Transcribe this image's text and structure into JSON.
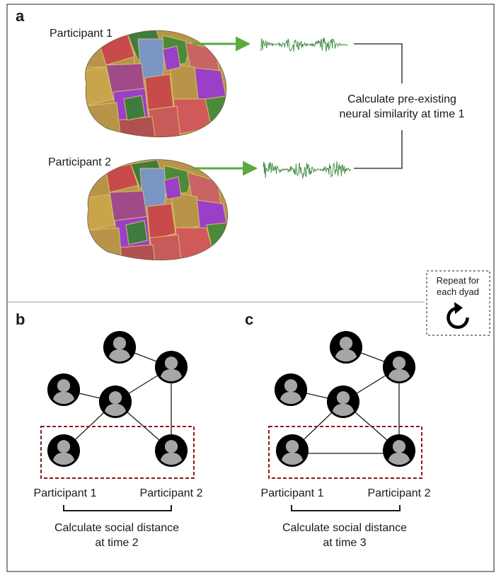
{
  "panel_a": {
    "letter": "a",
    "participant_1": "Participant 1",
    "participant_2": "Participant 2",
    "calc_line1": "Calculate pre-existing",
    "calc_line2": "neural similarity at time 1"
  },
  "repeat_box": {
    "line1": "Repeat for",
    "line2": "each dyad",
    "icon": "repeat-icon"
  },
  "panel_b": {
    "letter": "b",
    "participant_1": "Participant 1",
    "participant_2": "Participant 2",
    "calc_line1": "Calculate social distance",
    "calc_line2": "at time 2"
  },
  "panel_c": {
    "letter": "c",
    "participant_1": "Participant 1",
    "participant_2": "Participant 2",
    "calc_line1": "Calculate social distance",
    "calc_line2": "at time 3"
  },
  "colors": {
    "signal_green": "#3d8a3d",
    "arrow_green": "#5aaa3c",
    "dashed_red": "#8b1a1a",
    "node_black": "#000000",
    "person_gray": "#a6a6a6"
  }
}
